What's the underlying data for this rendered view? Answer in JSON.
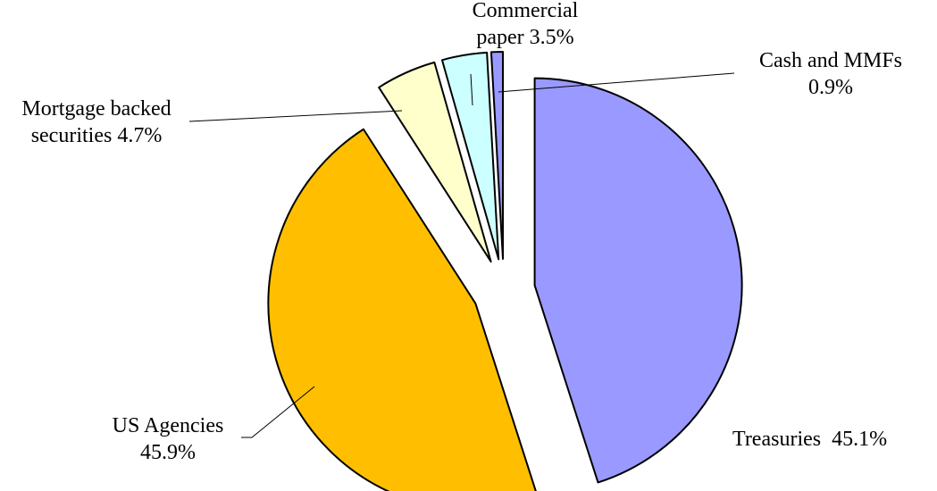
{
  "chart_data": {
    "type": "pie",
    "title": "",
    "start_angle_deg": 0,
    "direction": "clockwise",
    "exploded": true,
    "legend": "none",
    "slices": [
      {
        "name": "Treasuries",
        "value": 45.1,
        "color": "#9999FF",
        "label_lines": [
          "Treasuries  45.1%"
        ]
      },
      {
        "name": "US Agencies",
        "value": 45.9,
        "color": "#FFBF00",
        "label_lines": [
          "US Agencies",
          "45.9%"
        ]
      },
      {
        "name": "Mortgage backed securities",
        "value": 4.7,
        "color": "#FFFFCC",
        "label_lines": [
          "Mortgage backed",
          "securities 4.7%"
        ]
      },
      {
        "name": "Commercial paper",
        "value": 3.5,
        "color": "#CCFFFF",
        "label_lines": [
          "Commercial",
          "paper 3.5%"
        ]
      },
      {
        "name": "Cash and MMFs",
        "value": 0.9,
        "color": "#9999FF",
        "label_lines": [
          "Cash and MMFs",
          "0.9%"
        ]
      }
    ]
  }
}
